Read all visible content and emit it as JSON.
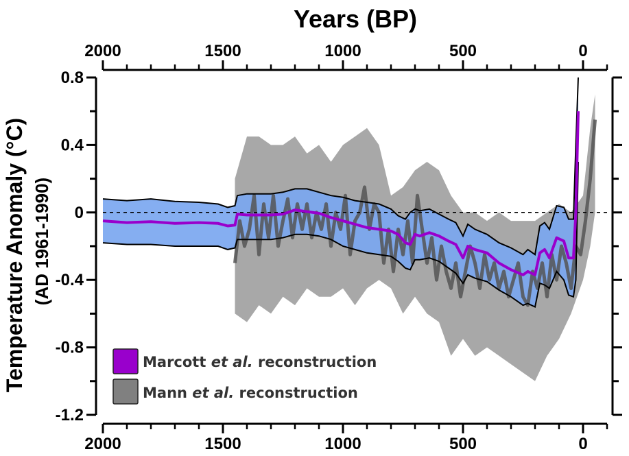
{
  "chart_data": {
    "type": "line",
    "title": "",
    "xlabel": "Years (BP)",
    "ylabel": "Temperature Anomaly (°C)",
    "ylabel_sub": "(AD 1961-1990)",
    "xlim": [
      2000,
      -100
    ],
    "ylim": [
      -1.2,
      0.8
    ],
    "x_major_ticks": [
      2000,
      1500,
      1000,
      500,
      0
    ],
    "x_tick_labels": [
      "2000",
      "1500",
      "1000",
      "500",
      "0"
    ],
    "x_minor_step": 100,
    "y_major_ticks": [
      0.8,
      0.4,
      0,
      -0.4,
      -0.8,
      -1.2
    ],
    "y_tick_labels": [
      "0.8",
      "0.4",
      "0",
      "-0.4",
      "-0.8",
      "-1.2"
    ],
    "y_minor_step": 0.2,
    "reference_line": {
      "y": 0,
      "style": "dashed"
    },
    "legend_position": "bottom-left",
    "legend": [
      {
        "label_pre": "Marcott ",
        "label_italic": "et al.",
        "label_post": " reconstruction",
        "color": "#9900cc"
      },
      {
        "label_pre": "Mann ",
        "label_italic": "et al.",
        "label_post": " reconstruction",
        "color": "#808080"
      }
    ],
    "colors": {
      "marcott_line": "#9900cc",
      "marcott_band": "#7ba7f0",
      "mann_line": "#555555",
      "mann_band": "#a8a8a8",
      "overlap_line": "#3d5585"
    },
    "series": [
      {
        "name": "Marcott et al. reconstruction (mean)",
        "x": [
          2000,
          1900,
          1800,
          1700,
          1600,
          1520,
          1480,
          1450,
          1440,
          1400,
          1300,
          1250,
          1200,
          1150,
          1100,
          1050,
          1000,
          950,
          900,
          850,
          800,
          770,
          740,
          720,
          700,
          680,
          640,
          600,
          560,
          530,
          500,
          480,
          450,
          400,
          350,
          300,
          250,
          230,
          200,
          180,
          160,
          140,
          110,
          80,
          60,
          40,
          30,
          20
        ],
        "values": [
          -0.05,
          -0.06,
          -0.055,
          -0.065,
          -0.06,
          -0.065,
          -0.08,
          -0.075,
          -0.01,
          -0.015,
          -0.015,
          -0.01,
          0.015,
          0.005,
          -0.005,
          -0.03,
          -0.05,
          -0.07,
          -0.09,
          -0.1,
          -0.11,
          -0.13,
          -0.18,
          -0.19,
          -0.13,
          -0.14,
          -0.12,
          -0.14,
          -0.17,
          -0.19,
          -0.27,
          -0.2,
          -0.22,
          -0.24,
          -0.3,
          -0.34,
          -0.37,
          -0.35,
          -0.37,
          -0.24,
          -0.22,
          -0.27,
          -0.15,
          -0.17,
          -0.27,
          -0.27,
          0.0,
          0.6
        ]
      },
      {
        "name": "Marcott et al. uncertainty upper",
        "x": [
          2000,
          1900,
          1800,
          1700,
          1600,
          1520,
          1480,
          1450,
          1440,
          1400,
          1300,
          1250,
          1200,
          1150,
          1100,
          1050,
          1000,
          950,
          900,
          850,
          800,
          770,
          740,
          720,
          700,
          680,
          640,
          600,
          560,
          530,
          500,
          480,
          450,
          400,
          350,
          300,
          250,
          230,
          200,
          180,
          160,
          140,
          110,
          80,
          60,
          40,
          30,
          20
        ],
        "values": [
          0.08,
          0.07,
          0.08,
          0.065,
          0.06,
          0.05,
          0.03,
          0.04,
          0.1,
          0.11,
          0.11,
          0.12,
          0.14,
          0.14,
          0.12,
          0.1,
          0.09,
          0.07,
          0.06,
          0.05,
          0.02,
          -0.02,
          -0.04,
          0.0,
          0.02,
          0.01,
          0.02,
          -0.01,
          -0.04,
          -0.06,
          -0.14,
          -0.07,
          -0.1,
          -0.13,
          -0.18,
          -0.21,
          -0.25,
          -0.22,
          -0.25,
          -0.08,
          -0.06,
          -0.1,
          0.04,
          0.03,
          -0.04,
          -0.04,
          0.4,
          0.8
        ]
      },
      {
        "name": "Marcott et al. uncertainty lower",
        "x": [
          2000,
          1900,
          1800,
          1700,
          1600,
          1520,
          1480,
          1450,
          1440,
          1400,
          1300,
          1250,
          1200,
          1150,
          1100,
          1050,
          1000,
          950,
          900,
          850,
          800,
          770,
          740,
          720,
          700,
          680,
          640,
          600,
          560,
          530,
          500,
          480,
          450,
          400,
          350,
          300,
          250,
          230,
          200,
          180,
          160,
          140,
          110,
          80,
          60,
          40,
          30,
          20
        ],
        "values": [
          -0.18,
          -0.19,
          -0.19,
          -0.2,
          -0.2,
          -0.2,
          -0.22,
          -0.21,
          -0.16,
          -0.16,
          -0.16,
          -0.15,
          -0.13,
          -0.13,
          -0.14,
          -0.16,
          -0.2,
          -0.22,
          -0.24,
          -0.25,
          -0.26,
          -0.29,
          -0.33,
          -0.34,
          -0.28,
          -0.28,
          -0.27,
          -0.29,
          -0.33,
          -0.36,
          -0.42,
          -0.37,
          -0.39,
          -0.41,
          -0.46,
          -0.5,
          -0.55,
          -0.54,
          -0.56,
          -0.42,
          -0.43,
          -0.45,
          -0.35,
          -0.4,
          -0.49,
          -0.5,
          -0.4,
          0.3
        ]
      },
      {
        "name": "Mann et al. reconstruction (smoothed)",
        "x": [
          1450,
          1430,
          1410,
          1390,
          1370,
          1350,
          1330,
          1310,
          1290,
          1270,
          1250,
          1230,
          1210,
          1190,
          1170,
          1150,
          1130,
          1110,
          1090,
          1070,
          1050,
          1030,
          1010,
          990,
          970,
          950,
          930,
          910,
          890,
          870,
          850,
          830,
          810,
          790,
          770,
          750,
          730,
          710,
          690,
          670,
          650,
          630,
          610,
          590,
          570,
          550,
          530,
          510,
          490,
          470,
          450,
          430,
          410,
          390,
          370,
          350,
          330,
          310,
          290,
          270,
          250,
          230,
          210,
          190,
          170,
          150,
          130,
          110,
          90,
          70,
          50,
          30,
          10,
          -10,
          -30,
          -50
        ],
        "values": [
          -0.3,
          -0.05,
          -0.2,
          -0.1,
          0.1,
          -0.25,
          0.05,
          -0.15,
          0.1,
          -0.2,
          -0.05,
          0.08,
          -0.15,
          0.05,
          -0.1,
          0.05,
          -0.15,
          0.0,
          -0.1,
          0.05,
          -0.2,
          0.0,
          -0.1,
          0.1,
          -0.25,
          -0.05,
          0.0,
          0.15,
          -0.1,
          0.05,
          0.0,
          -0.3,
          -0.1,
          -0.35,
          -0.1,
          -0.25,
          -0.05,
          -0.3,
          0.1,
          -0.1,
          -0.3,
          -0.15,
          -0.4,
          -0.2,
          -0.35,
          -0.45,
          -0.3,
          -0.5,
          -0.35,
          -0.2,
          -0.3,
          -0.45,
          -0.25,
          -0.4,
          -0.3,
          -0.45,
          -0.35,
          -0.5,
          -0.4,
          -0.3,
          -0.5,
          -0.55,
          -0.35,
          -0.45,
          -0.3,
          -0.5,
          -0.25,
          -0.4,
          -0.2,
          -0.3,
          -0.45,
          -0.2,
          -0.25,
          -0.05,
          0.2,
          0.55
        ]
      },
      {
        "name": "Mann et al. uncertainty upper",
        "x": [
          1450,
          1400,
          1350,
          1300,
          1250,
          1200,
          1150,
          1100,
          1050,
          1000,
          950,
          900,
          850,
          800,
          750,
          700,
          650,
          600,
          550,
          500,
          450,
          400,
          350,
          300,
          250,
          200,
          150,
          100,
          50,
          0,
          -30,
          -50
        ],
        "values": [
          0.2,
          0.45,
          0.45,
          0.4,
          0.4,
          0.45,
          0.35,
          0.4,
          0.3,
          0.4,
          0.45,
          0.5,
          0.4,
          0.1,
          0.15,
          0.25,
          0.3,
          0.25,
          0.1,
          0.0,
          0.0,
          -0.05,
          0.0,
          -0.05,
          -0.05,
          -0.05,
          0.0,
          0.05,
          0.0,
          0.1,
          0.5,
          0.7
        ]
      },
      {
        "name": "Mann et al. uncertainty lower",
        "x": [
          1450,
          1400,
          1350,
          1300,
          1250,
          1200,
          1150,
          1100,
          1050,
          1000,
          950,
          900,
          850,
          800,
          750,
          700,
          650,
          600,
          550,
          500,
          450,
          400,
          350,
          300,
          250,
          200,
          150,
          100,
          50,
          0,
          -30,
          -50
        ],
        "values": [
          -0.6,
          -0.65,
          -0.55,
          -0.6,
          -0.5,
          -0.55,
          -0.45,
          -0.5,
          -0.5,
          -0.45,
          -0.55,
          -0.45,
          -0.4,
          -0.45,
          -0.6,
          -0.5,
          -0.6,
          -0.65,
          -0.85,
          -0.75,
          -0.85,
          -0.8,
          -0.85,
          -0.9,
          -0.95,
          -1.0,
          -0.85,
          -0.75,
          -0.6,
          -0.4,
          -0.2,
          0.0
        ]
      }
    ]
  }
}
